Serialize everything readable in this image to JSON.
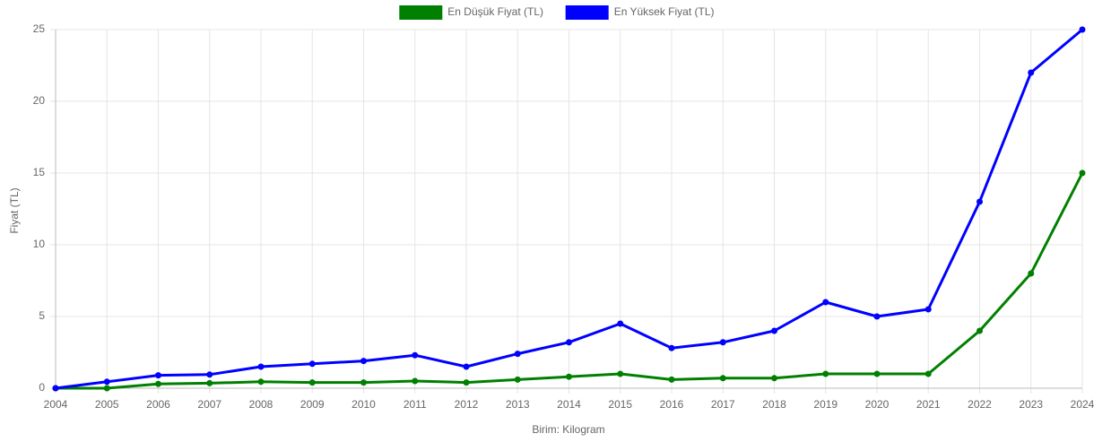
{
  "chart_data": {
    "type": "line",
    "x_label": "Birim: Kilogram",
    "y_label": "Fiyat (TL)",
    "categories": [
      "2004",
      "2005",
      "2006",
      "2007",
      "2008",
      "2009",
      "2010",
      "2011",
      "2012",
      "2013",
      "2014",
      "2015",
      "2016",
      "2017",
      "2018",
      "2019",
      "2020",
      "2021",
      "2022",
      "2023",
      "2024"
    ],
    "series": [
      {
        "name": "En Düşük Fiyat (TL)",
        "color": "#008000",
        "values": [
          0,
          0,
          0.3,
          0.35,
          0.45,
          0.4,
          0.4,
          0.5,
          0.4,
          0.6,
          0.8,
          1.0,
          0.6,
          0.7,
          0.7,
          1,
          1,
          1,
          4,
          8,
          15
        ]
      },
      {
        "name": "En Yüksek Fiyat (TL)",
        "color": "#0000ff",
        "values": [
          0,
          0.45,
          0.9,
          0.95,
          1.5,
          1.7,
          1.9,
          2.3,
          1.5,
          2.4,
          3.2,
          4.5,
          2.8,
          3.2,
          4,
          6,
          5,
          5.5,
          13,
          22,
          25
        ]
      }
    ],
    "ylim": [
      0,
      25
    ],
    "yticks": [
      0,
      5,
      10,
      15,
      20,
      25
    ],
    "grid": true,
    "legend": "top"
  }
}
